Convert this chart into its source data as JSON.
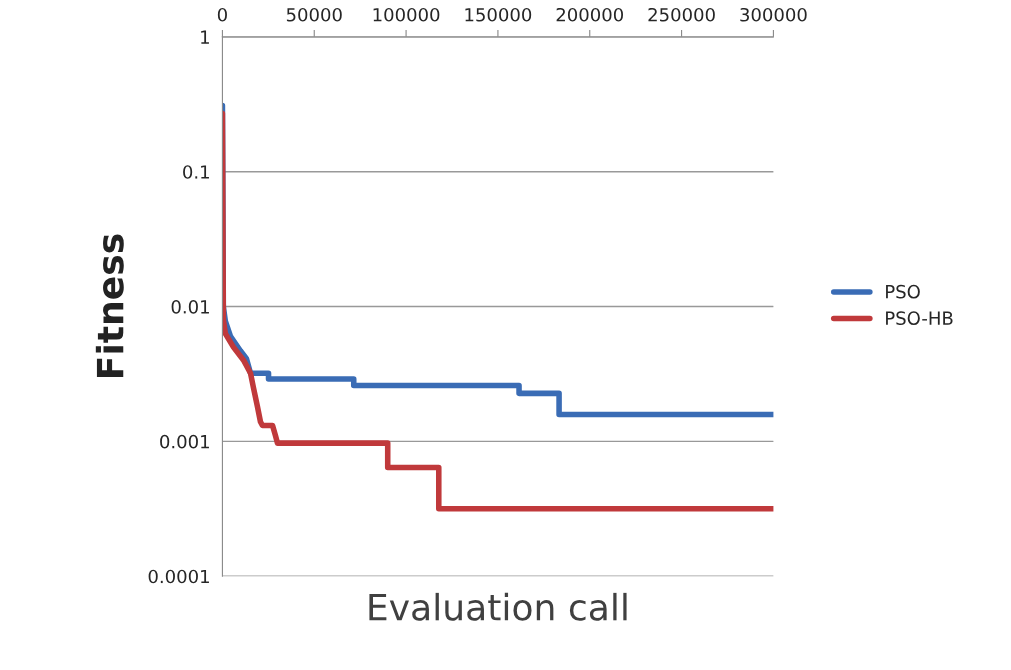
{
  "chart_data": {
    "type": "line",
    "xlabel": "Evaluation call",
    "ylabel": "Fitness",
    "log": "y",
    "ylim": [
      0.0001,
      1
    ],
    "yticks": [
      0.0001,
      0.001,
      0.01,
      0.1,
      1
    ],
    "xlim": [
      0,
      300000
    ],
    "xticks": [
      0,
      50000,
      100000,
      150000,
      200000,
      250000,
      300000
    ],
    "grid": "y",
    "legend": "right",
    "marker": "none",
    "line_style": "solid",
    "series": [
      {
        "name": "PSO",
        "color": "#3a6cb5",
        "x": [
          0,
          500,
          1600,
          4400,
          9800,
          13100,
          15300,
          25100,
          25100,
          71500,
          71500,
          161500,
          161500,
          183300,
          183300,
          300000
        ],
        "values": [
          0.31,
          0.01,
          0.0078,
          0.006,
          0.0047,
          0.0041,
          0.0032,
          0.0032,
          0.0029,
          0.0029,
          0.0026,
          0.0026,
          0.00227,
          0.00227,
          0.00158,
          0.00158
        ]
      },
      {
        "name": "PSO-HB",
        "color": "#c0393b",
        "x": [
          0,
          500,
          1600,
          6000,
          11500,
          15300,
          16900,
          19100,
          20700,
          21800,
          27300,
          28900,
          30000,
          90000,
          90000,
          117800,
          117800,
          300000
        ],
        "values": [
          0.27,
          0.008,
          0.0063,
          0.005,
          0.004,
          0.0032,
          0.0025,
          0.0018,
          0.0014,
          0.00131,
          0.00131,
          0.0011,
          0.00097,
          0.00097,
          0.00064,
          0.00064,
          0.000316,
          0.000316
        ]
      }
    ]
  }
}
